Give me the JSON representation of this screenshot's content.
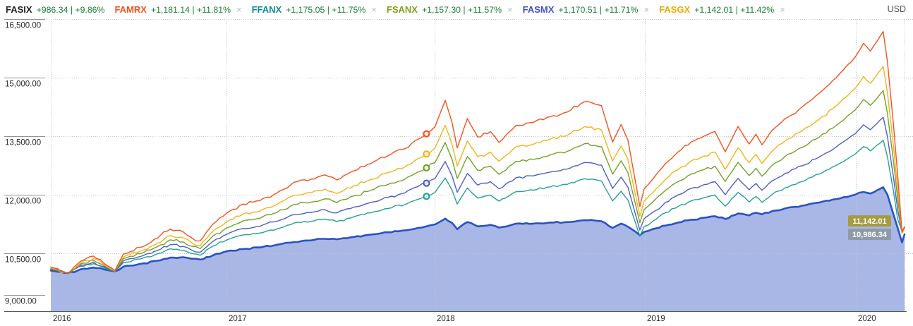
{
  "header": {
    "primary": {
      "symbol": "FASIX",
      "color": "#222222",
      "change": "+986.34",
      "percent": "+9.86%"
    },
    "compare": [
      {
        "symbol": "FAMRX",
        "color": "#f4511e",
        "change": "+1,181.14",
        "percent": "+11.81%"
      },
      {
        "symbol": "FFANX",
        "color": "#0e8997",
        "change": "+1,175.05",
        "percent": "+11.75%"
      },
      {
        "symbol": "FSANX",
        "color": "#7ba11c",
        "change": "+1,157.30",
        "percent": "+11.57%"
      },
      {
        "symbol": "FASMX",
        "color": "#4050c8",
        "change": "+1,170.51",
        "percent": "+11.71%"
      },
      {
        "symbol": "FASGX",
        "color": "#edaa00",
        "change": "+1,142.01",
        "percent": "+11.42%"
      }
    ],
    "remove_icon": "×",
    "currency": "USD",
    "value_color": "#1b7c39"
  },
  "chart_data": {
    "type": "line",
    "y_range": [
      9000,
      16500
    ],
    "grid": true,
    "y_ticks": [
      {
        "label": "16,500.00",
        "value": 16500
      },
      {
        "label": "15,000.00",
        "value": 15000
      },
      {
        "label": "13,500.00",
        "value": 13500
      },
      {
        "label": "12,000.00",
        "value": 12000
      },
      {
        "label": "10,500.00",
        "value": 10500
      },
      {
        "label": "9,000.00",
        "value": 9000
      }
    ],
    "x_ticks": [
      {
        "label": "2016",
        "t": 0.0
      },
      {
        "label": "2017",
        "t": 0.2058
      },
      {
        "label": "2018",
        "t": 0.4496
      },
      {
        "label": "2019",
        "t": 0.6959
      },
      {
        "label": "2020",
        "t": 0.943
      }
    ],
    "t": [
      0.0,
      0.02,
      0.035,
      0.05,
      0.062,
      0.075,
      0.085,
      0.105,
      0.125,
      0.14,
      0.155,
      0.165,
      0.175,
      0.19,
      0.206,
      0.225,
      0.245,
      0.265,
      0.285,
      0.305,
      0.321,
      0.335,
      0.355,
      0.375,
      0.395,
      0.415,
      0.43,
      0.44,
      0.45,
      0.462,
      0.47,
      0.476,
      0.488,
      0.5,
      0.515,
      0.525,
      0.545,
      0.565,
      0.585,
      0.605,
      0.625,
      0.645,
      0.658,
      0.668,
      0.676,
      0.69,
      0.695,
      0.705,
      0.72,
      0.735,
      0.75,
      0.765,
      0.778,
      0.79,
      0.805,
      0.818,
      0.826,
      0.833,
      0.845,
      0.86,
      0.88,
      0.9,
      0.92,
      0.942,
      0.952,
      0.96,
      0.975,
      0.98,
      0.987,
      0.992,
      0.997,
      1.0
    ],
    "series": [
      {
        "name": "FASIX",
        "color": "#2a52c3",
        "fill": "#a8b7e6",
        "area": true,
        "values": [
          10060,
          9995,
          10090,
          10135,
          10090,
          10040,
          10160,
          10230,
          10310,
          10390,
          10400,
          10360,
          10340,
          10450,
          10550,
          10610,
          10650,
          10720,
          10790,
          10830,
          10870,
          10860,
          10920,
          10980,
          11040,
          11090,
          11150,
          11190,
          11240,
          11390,
          11280,
          11120,
          11300,
          11190,
          11230,
          11160,
          11260,
          11260,
          11290,
          11300,
          11350,
          11320,
          11150,
          11260,
          11180,
          10960,
          11050,
          11120,
          11210,
          11290,
          11360,
          11410,
          11450,
          11380,
          11520,
          11470,
          11540,
          11500,
          11580,
          11650,
          11720,
          11800,
          11890,
          12000,
          12070,
          12030,
          12190,
          12000,
          11500,
          11150,
          10780,
          10986.34
        ]
      },
      {
        "name": "FFANX",
        "color": "#23a099",
        "area": false,
        "values": [
          10083,
          9989,
          10165,
          10237,
          10138,
          10033,
          10264,
          10358,
          10490,
          10616,
          10578,
          10495,
          10451,
          10688,
          10842,
          10968,
          11018,
          11128,
          11276,
          11320,
          11381,
          11309,
          11436,
          11540,
          11650,
          11749,
          11881,
          11958,
          12057,
          12431,
          12118,
          11760,
          12173,
          11914,
          11991,
          11837,
          12079,
          12118,
          12200,
          12266,
          12409,
          12354,
          11843,
          12090,
          11870,
          10935,
          11183,
          11320,
          11540,
          11705,
          11843,
          11925,
          11991,
          11705,
          12063,
          11815,
          11953,
          11804,
          12008,
          12173,
          12338,
          12530,
          12750,
          13036,
          13234,
          13124,
          13399,
          12970,
          12090,
          11375,
          11060,
          11175.05
        ]
      },
      {
        "name": "FASMX",
        "color": "#4f5ec9",
        "area": false,
        "values": [
          10097,
          9987,
          10194,
          10277,
          10161,
          10039,
          10310,
          10419,
          10574,
          10722,
          10677,
          10581,
          10529,
          10806,
          10987,
          11135,
          11193,
          11322,
          11496,
          11548,
          11619,
          11535,
          11683,
          11806,
          11935,
          12051,
          12206,
          12296,
          12412,
          12851,
          12483,
          12064,
          12548,
          12245,
          12335,
          12154,
          12438,
          12483,
          12580,
          12657,
          12825,
          12761,
          12161,
          12451,
          12193,
          11097,
          11387,
          11548,
          11806,
          12000,
          12161,
          12258,
          12335,
          12000,
          12419,
          12129,
          12290,
          12116,
          12354,
          12548,
          12741,
          12967,
          13225,
          13560,
          13793,
          13664,
          13986,
          13483,
          12451,
          11613,
          11040,
          11170.51
        ]
      },
      {
        "name": "FSANX",
        "color": "#71a227",
        "area": false,
        "values": [
          10113,
          9985,
          10227,
          10325,
          10189,
          10045,
          10362,
          10491,
          10672,
          10846,
          10793,
          10680,
          10619,
          10944,
          11155,
          11329,
          11397,
          11548,
          11752,
          11812,
          11895,
          11797,
          11971,
          12114,
          12265,
          12401,
          12582,
          12688,
          12824,
          13337,
          12907,
          12416,
          12982,
          12627,
          12733,
          12522,
          12854,
          12907,
          13020,
          13111,
          13307,
          13231,
          12529,
          12869,
          12567,
          11284,
          11623,
          11812,
          12114,
          12341,
          12529,
          12643,
          12733,
          12341,
          12831,
          12492,
          12680,
          12476,
          12756,
          12982,
          13209,
          13473,
          13775,
          14168,
          14439,
          14288,
          14666,
          14077,
          12869,
          11888,
          11020,
          11157.3
        ]
      },
      {
        "name": "FASGX",
        "color": "#f3b31a",
        "area": false,
        "values": [
          10128,
          9983,
          10257,
          10368,
          10214,
          10051,
          10410,
          10556,
          10761,
          10958,
          10898,
          10770,
          10701,
          11069,
          11308,
          11505,
          11582,
          11753,
          11984,
          12052,
          12146,
          12035,
          12232,
          12394,
          12565,
          12719,
          12924,
          13044,
          13198,
          13779,
          13292,
          12736,
          13377,
          12975,
          13095,
          12856,
          13232,
          13292,
          13420,
          13523,
          13745,
          13659,
          12864,
          13249,
          12907,
          11454,
          11838,
          12052,
          12394,
          12651,
          12864,
          12993,
          13095,
          12651,
          13206,
          12822,
          13035,
          12804,
          13121,
          13377,
          13634,
          13933,
          14275,
          14720,
          15027,
          14856,
          15284,
          14617,
          13249,
          12138,
          11000,
          11142.01
        ]
      },
      {
        "name": "FAMRX",
        "color": "#f4511e",
        "area": false,
        "values": [
          10150,
          9980,
          10300,
          10430,
          10250,
          10060,
          10480,
          10650,
          10890,
          11120,
          11050,
          10900,
          10820,
          11250,
          11530,
          11760,
          11850,
          12050,
          12320,
          12400,
          12510,
          12380,
          12610,
          12800,
          13000,
          13180,
          13420,
          13560,
          13740,
          14420,
          13850,
          13200,
          13950,
          13480,
          13620,
          13340,
          13780,
          13850,
          14000,
          14120,
          14380,
          14280,
          13350,
          13800,
          13400,
          11700,
          12150,
          12400,
          12800,
          13100,
          13350,
          13500,
          13620,
          13100,
          13750,
          13300,
          13550,
          13280,
          13650,
          13950,
          14250,
          14600,
          15000,
          15520,
          15880,
          15680,
          16180,
          15400,
          13800,
          12500,
          11050,
          11181.14
        ]
      }
    ],
    "event_markers": {
      "t": 0.44,
      "points": [
        {
          "series": "FAMRX",
          "value": 13560,
          "color": "#f4511e"
        },
        {
          "series": "FASGX",
          "value": 13044,
          "color": "#f3b31a"
        },
        {
          "series": "FSANX",
          "value": 12688,
          "color": "#71a227"
        },
        {
          "series": "FASMX",
          "value": 12296,
          "color": "#4f5ec9"
        },
        {
          "series": "FFANX",
          "value": 11958,
          "color": "#23a099"
        }
      ]
    },
    "last_price_labels": [
      {
        "text": "11,142.01",
        "value": 11142.01,
        "bg": "#a69a43"
      },
      {
        "text": "10,986.34",
        "value": 10986.34,
        "bg": "#8f9aa9"
      }
    ]
  }
}
